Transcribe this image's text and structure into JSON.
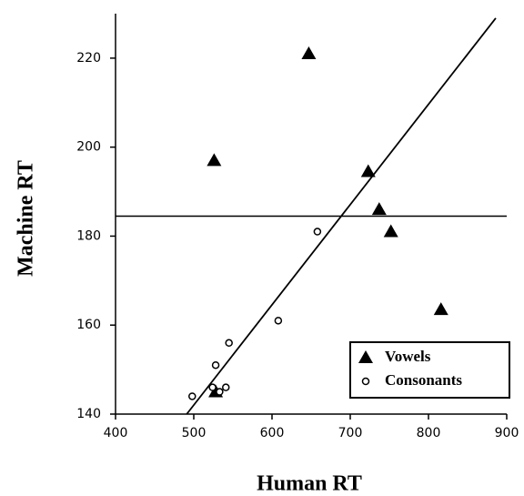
{
  "chart_data": {
    "type": "scatter",
    "x_label": "Human RT",
    "y_label": "Machine RT",
    "xlim": [
      400,
      900
    ],
    "xticks": [
      400,
      500,
      600,
      700,
      800,
      900
    ],
    "ylim": [
      140,
      230
    ],
    "yticks": [
      140,
      160,
      180,
      200,
      220
    ],
    "legend": "bottom-right",
    "series": [
      {
        "name": "Vowels",
        "marker": "triangle",
        "color": "#000000",
        "x": [
          647,
          526,
          723,
          737,
          752,
          816,
          528
        ],
        "values": [
          221,
          197,
          194.5,
          186,
          181,
          163.5,
          145
        ]
      },
      {
        "name": "Consonants",
        "marker": "circle",
        "color": "#000000",
        "x": [
          498,
          528,
          524,
          533,
          541,
          545,
          608,
          658
        ],
        "values": [
          144,
          151,
          146,
          145,
          146,
          156,
          161,
          181
        ]
      }
    ],
    "hline": 184.5,
    "fit_line": {
      "x": [
        491,
        886
      ],
      "values": [
        140,
        229
      ]
    }
  }
}
